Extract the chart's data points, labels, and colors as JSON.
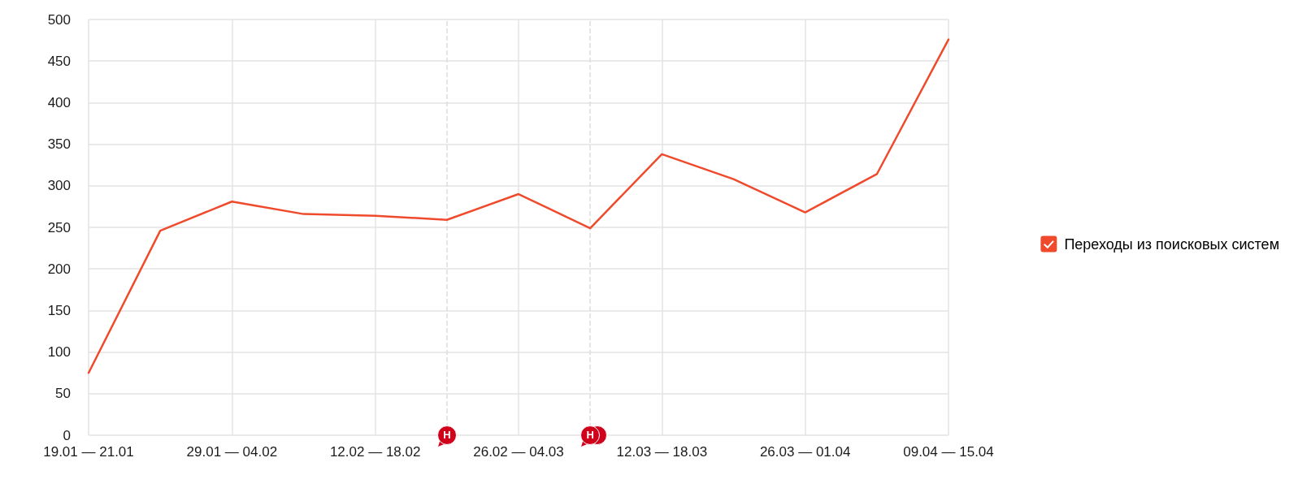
{
  "chart_data": {
    "type": "line",
    "categories": [
      "19.01 — 21.01",
      null,
      "29.01 — 04.02",
      null,
      "12.02 — 18.02",
      null,
      "26.02 — 04.03",
      null,
      "12.03 — 18.03",
      null,
      "26.03 — 01.04",
      null,
      "09.04 — 15.04"
    ],
    "series": [
      {
        "name": "Переходы из поисковых систем",
        "color": "#f04a2d",
        "values": [
          75,
          246,
          281,
          266,
          264,
          259,
          290,
          249,
          338,
          308,
          268,
          314,
          476
        ]
      }
    ],
    "ylim": [
      0,
      500
    ],
    "yticks": [
      0,
      50,
      100,
      150,
      200,
      250,
      300,
      350,
      400,
      450,
      500
    ],
    "grid": true,
    "legend": "right",
    "marker": "none",
    "line_style": "solid",
    "annotations": [
      "Н",
      "Н"
    ]
  }
}
